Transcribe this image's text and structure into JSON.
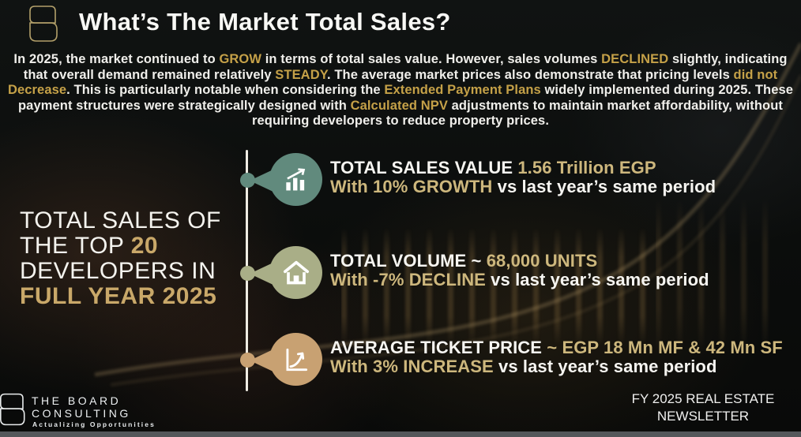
{
  "page": {
    "background": "#0c0e0d",
    "bottom_bar_color": "#54575a"
  },
  "header": {
    "logo_icon": "board-consulting-logo-icon",
    "title": "What’s The Market Total Sales?"
  },
  "intro": {
    "segments": [
      {
        "t": "In 2025, the market continued to ",
        "c": "seg-w"
      },
      {
        "t": "GROW",
        "c": "seg-g"
      },
      {
        "t": " in terms of total sales value. However, sales volumes ",
        "c": "seg-w"
      },
      {
        "t": "DECLINED",
        "c": "seg-g"
      },
      {
        "t": " slightly, indicating that overall demand remained relatively ",
        "c": "seg-w"
      },
      {
        "t": "STEADY",
        "c": "seg-g"
      },
      {
        "t": ". The average market prices also demonstrate that pricing levels ",
        "c": "seg-w"
      },
      {
        "t": "did not Decrease",
        "c": "seg-g"
      },
      {
        "t": ". This is particularly notable when considering the ",
        "c": "seg-w"
      },
      {
        "t": "Extended Payment Plans",
        "c": "seg-g"
      },
      {
        "t": " widely implemented during 2025. These payment structures were strategically designed with ",
        "c": "seg-w"
      },
      {
        "t": "Calculated NPV",
        "c": "seg-g"
      },
      {
        "t": " adjustments to maintain market affordability, without requiring developers to reduce property prices.",
        "c": "seg-w"
      }
    ]
  },
  "left_heading": {
    "line1": [
      {
        "t": "TOTAL SALES OF",
        "c": "seg-wl"
      }
    ],
    "line2": [
      {
        "t": "THE TOP ",
        "c": "seg-wl"
      },
      {
        "t": "20",
        "c": "seg-gs"
      }
    ],
    "line3": [
      {
        "t": "DEVELOPERS IN",
        "c": "seg-wl"
      }
    ],
    "line4": [
      {
        "t": "FULL YEAR 2025",
        "c": "seg-gs"
      }
    ]
  },
  "stats": [
    {
      "icon": "bar-chart-growth-icon",
      "circle_color": "#618a7d",
      "line1": [
        {
          "t": "TOTAL SALES VALUE ",
          "c": "seg-w"
        },
        {
          "t": "1.56 Trillion EGP",
          "c": "seg-g"
        }
      ],
      "line2": [
        {
          "t": "With 10% GROWTH",
          "c": "seg-g"
        },
        {
          "t": " vs last year’s same period",
          "c": "seg-w"
        }
      ]
    },
    {
      "icon": "house-icon",
      "circle_color": "#a9ae87",
      "line1": [
        {
          "t": "TOTAL VOLUME ~ ",
          "c": "seg-w"
        },
        {
          "t": "68,000 UNITS",
          "c": "seg-g"
        }
      ],
      "line2": [
        {
          "t": "With -7% DECLINE",
          "c": "seg-g"
        },
        {
          "t": " vs last year’s same period",
          "c": "seg-w"
        }
      ]
    },
    {
      "icon": "line-chart-increase-icon",
      "circle_color": "#c8a172",
      "line1": [
        {
          "t": "AVERAGE TICKET PRICE ",
          "c": "seg-w"
        },
        {
          "t": "~ EGP 18 Mn MF & 42 Mn SF",
          "c": "seg-g"
        }
      ],
      "line2": [
        {
          "t": "With 3% INCREASE",
          "c": "seg-g"
        },
        {
          "t": " vs last year’s same period",
          "c": "seg-w"
        }
      ]
    }
  ],
  "footer": {
    "brand": {
      "logo_icon": "board-consulting-logo-icon",
      "name_line1": "THE BOARD",
      "name_line2": "CONSULTING",
      "tagline": "Actualizing Opportunities"
    },
    "newsletter": {
      "line1": "FY 2025 REAL ESTATE",
      "line2": "NEWSLETTER"
    }
  },
  "colors": {
    "paragraph_highlight_gold": "#c5a148",
    "stat_gold": "#cdb77d",
    "heading_gold": "#c9a869",
    "teal_circle": "#618a7d",
    "sage_circle": "#a9ae87",
    "tan_circle": "#c8a172"
  }
}
